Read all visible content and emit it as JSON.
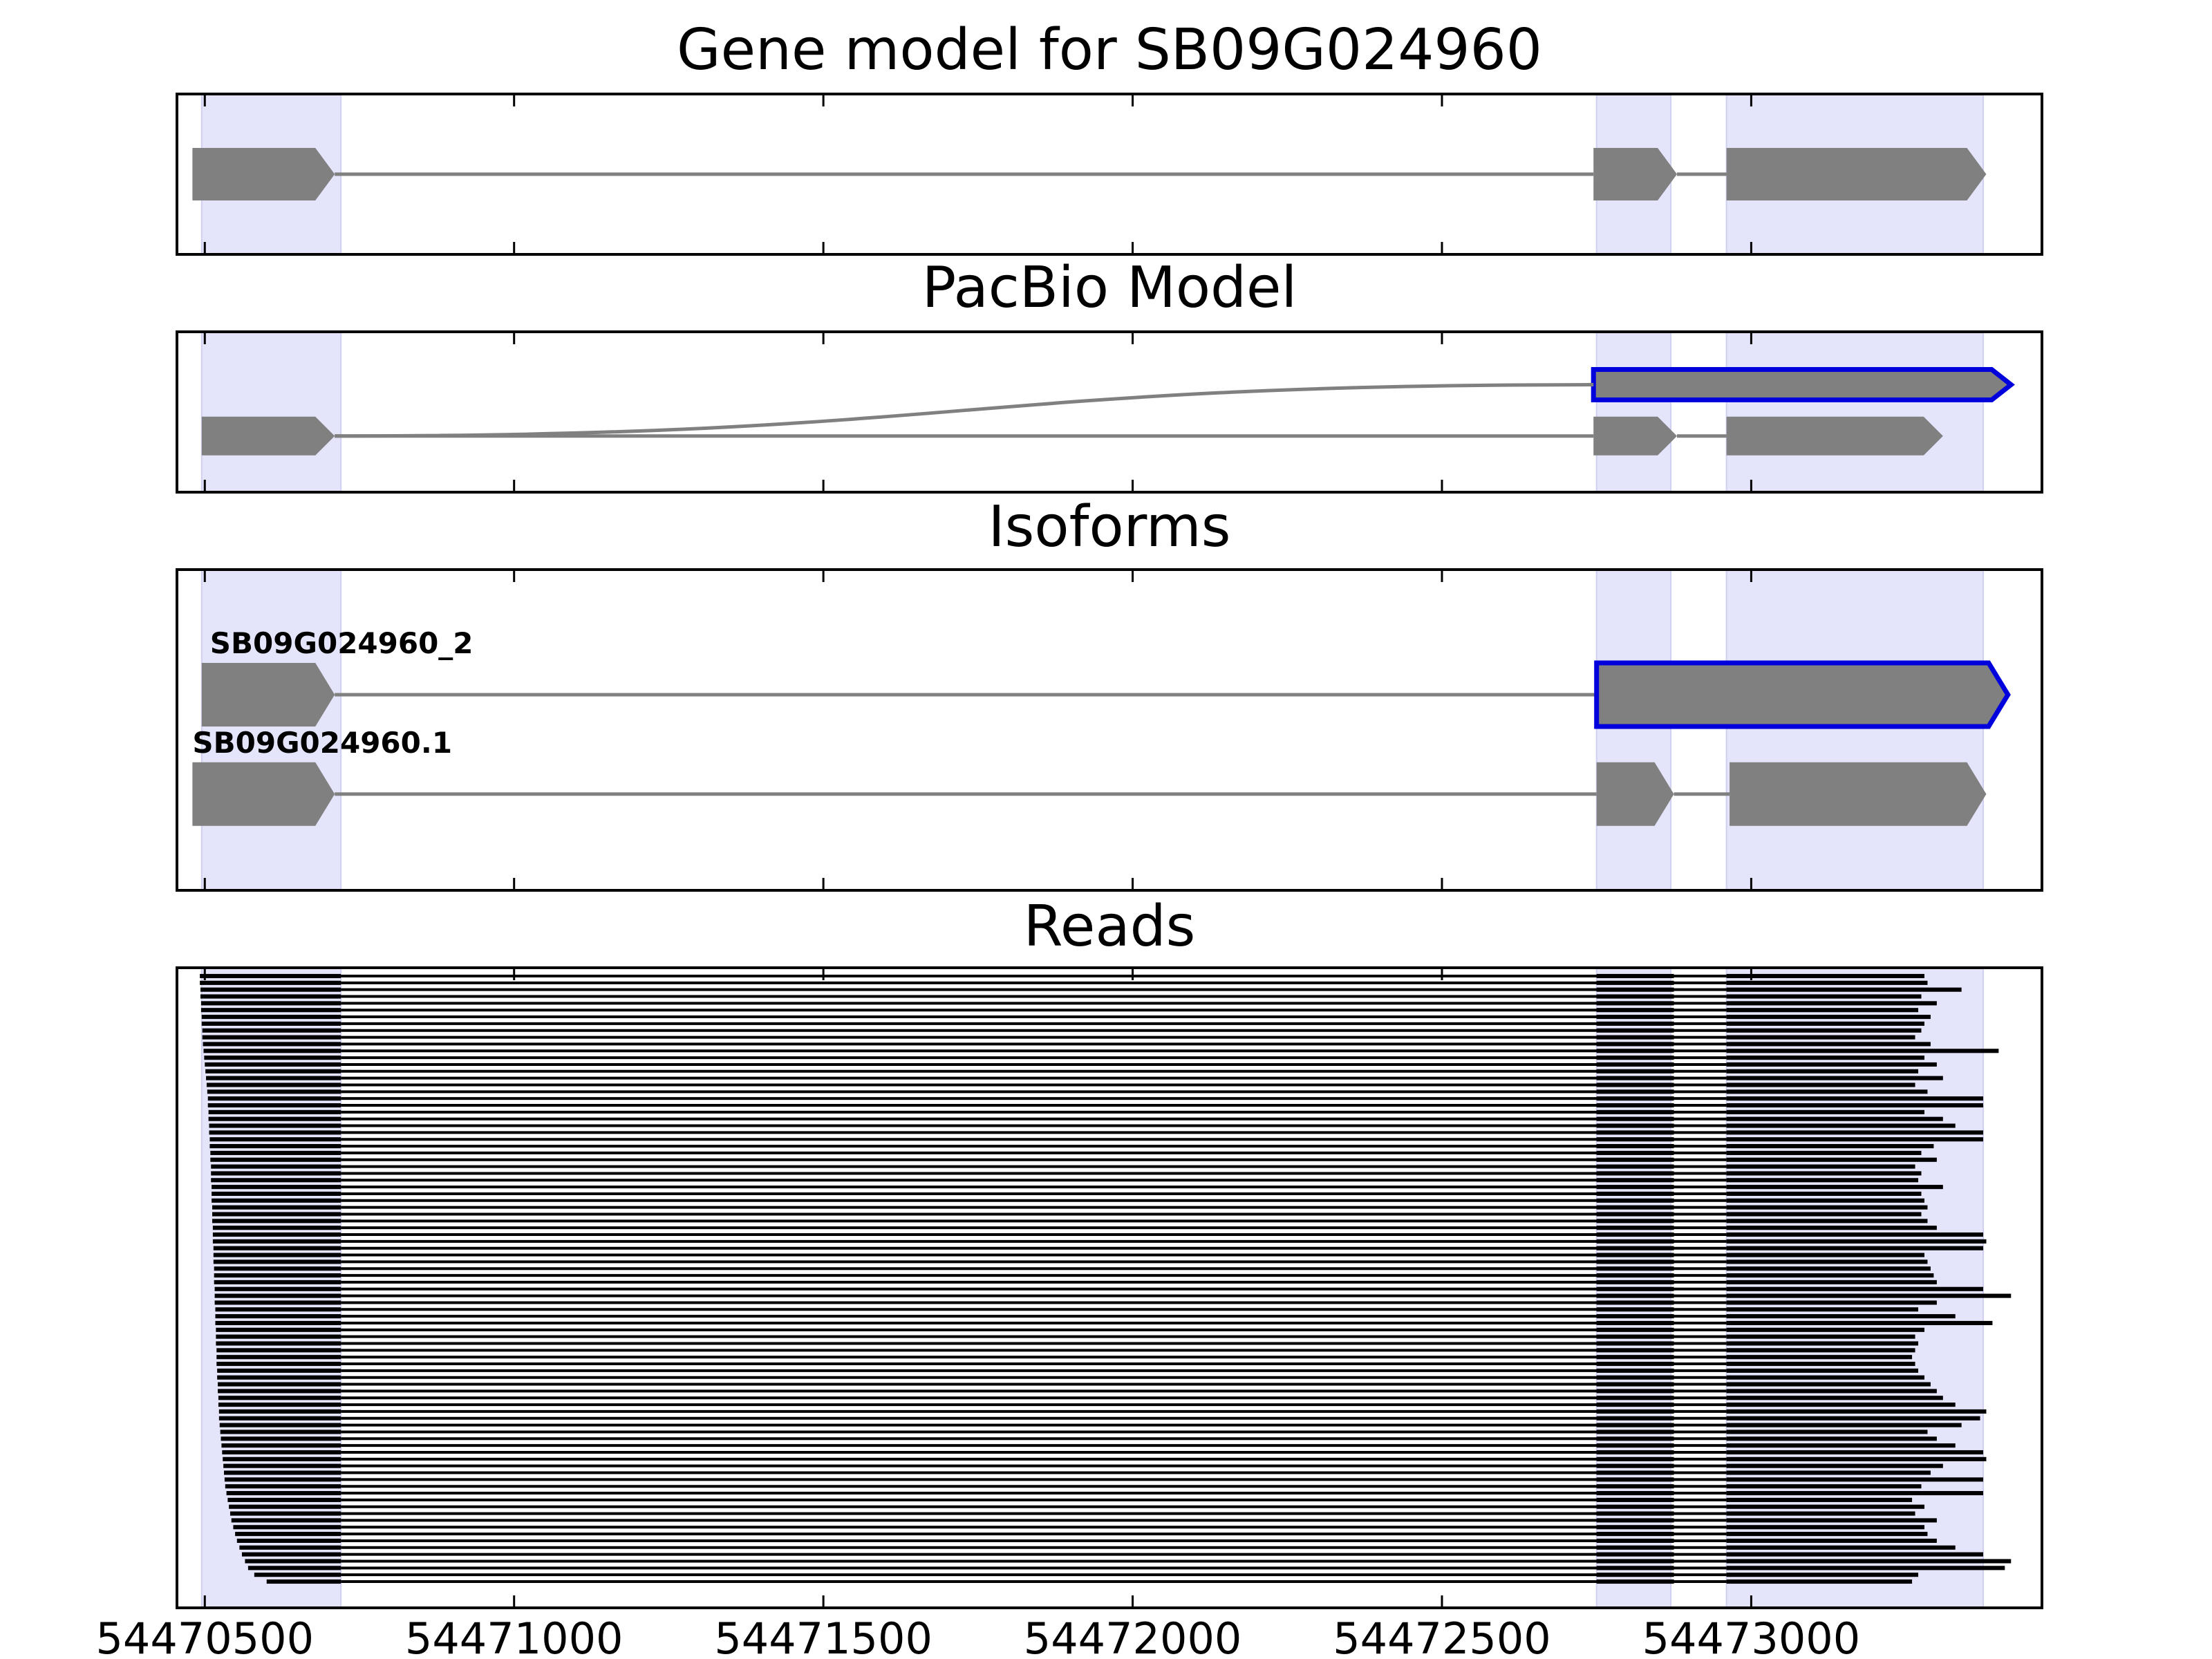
{
  "chart_data": {
    "type": "gene_structure_tracks",
    "x_range": [
      54470455,
      54473470
    ],
    "x_ticks": [
      54470500,
      54471000,
      54471500,
      54472000,
      54472500,
      54473000
    ],
    "colors": {
      "highlight": "#e4e4fb",
      "feature": "#808080",
      "selected_outline": "#0000dd",
      "read": "#000000"
    },
    "exon_regions": [
      [
        54470495,
        54470720
      ],
      [
        54472750,
        54472870
      ],
      [
        54472960,
        54473375
      ]
    ],
    "panels": [
      {
        "id": "gene-model",
        "title": "Gene model for SB09G024960",
        "tracks": [
          {
            "label": "",
            "row": 0.5,
            "highlight": false,
            "exons": [
              [
                54470480,
                54470710
              ],
              [
                54472745,
                54472880
              ],
              [
                54472960,
                54473380
              ]
            ]
          }
        ]
      },
      {
        "id": "pacbio-model",
        "title": "PacBio Model",
        "tracks": [
          {
            "label": "",
            "row": 0.33,
            "highlight": true,
            "exons": [
              [
                54472745,
                54473420
              ]
            ],
            "curved_intron": true
          },
          {
            "label": "",
            "row": 0.65,
            "highlight": false,
            "exons": [
              [
                54470495,
                54470710
              ],
              [
                54472745,
                54472880
              ],
              [
                54472960,
                54473310
              ]
            ]
          }
        ]
      },
      {
        "id": "isoforms",
        "title": "Isoforms",
        "tracks": [
          {
            "label": "SB09G024960_2",
            "row": 0.39,
            "highlight": true,
            "exons": [
              [
                54470495,
                54470710
              ],
              [
                54472750,
                54473415
              ]
            ]
          },
          {
            "label": "SB09G024960.1",
            "row": 0.7,
            "highlight": false,
            "exons": [
              [
                54470480,
                54470710
              ],
              [
                54472750,
                54472875
              ],
              [
                54472965,
                54473380
              ]
            ]
          }
        ]
      }
    ],
    "reads_panel": {
      "id": "reads",
      "title": "Reads",
      "exon1_end": 54470720,
      "exon2": [
        54472750,
        54472875
      ],
      "exon3_start": 54472960,
      "read_count": 90,
      "read_starts": [
        54470492,
        54470492,
        54470493,
        54470493,
        54470494,
        54470494,
        54470495,
        54470495,
        54470496,
        54470496,
        54470497,
        54470498,
        54470499,
        54470500,
        54470501,
        54470502,
        54470503,
        54470504,
        54470505,
        54470505,
        54470506,
        54470506,
        54470507,
        54470507,
        54470508,
        54470508,
        54470509,
        54470509,
        54470510,
        54470510,
        54470510,
        54470511,
        54470511,
        54470511,
        54470512,
        54470512,
        54470512,
        54470513,
        54470513,
        54470513,
        54470514,
        54470514,
        54470514,
        54470515,
        54470515,
        54470515,
        54470516,
        54470516,
        54470516,
        54470517,
        54470517,
        54470517,
        54470518,
        54470518,
        54470518,
        54470519,
        54470519,
        54470519,
        54470520,
        54470520,
        54470521,
        54470521,
        54470522,
        54470522,
        54470523,
        54470523,
        54470524,
        54470525,
        54470526,
        54470527,
        54470528,
        54470529,
        54470530,
        54470531,
        54470532,
        54470533,
        54470535,
        54470537,
        54470539,
        54470541,
        54470543,
        54470546,
        54470549,
        54470552,
        54470556,
        54470560,
        54470565,
        54470570,
        54470580,
        54470600
      ],
      "read_ends": [
        54473280,
        54473285,
        54473340,
        54473275,
        54473300,
        54473270,
        54473290,
        54473280,
        54473275,
        54473265,
        54473290,
        54473400,
        54473280,
        54473300,
        54473270,
        54473310,
        54473265,
        54473285,
        54473375,
        54473375,
        54473280,
        54473310,
        54473330,
        54473375,
        54473375,
        54473295,
        54473275,
        54473300,
        54473265,
        54473275,
        54473270,
        54473310,
        54473275,
        54473280,
        54473285,
        54473275,
        54473285,
        54473300,
        54473375,
        54473380,
        54473375,
        54473280,
        54473285,
        54473290,
        54473295,
        54473300,
        54473375,
        54473420,
        54473300,
        54473270,
        54473330,
        54473390,
        54473280,
        54473265,
        54473270,
        54473265,
        54473260,
        54473265,
        54473270,
        54473280,
        54473290,
        54473300,
        54473310,
        54473330,
        54473380,
        54473370,
        54473340,
        54473285,
        54473300,
        54473330,
        54473375,
        54473380,
        54473310,
        54473290,
        54473375,
        54473275,
        54473375,
        54473260,
        54473280,
        54473265,
        54473300,
        54473280,
        54473285,
        54473300,
        54473330,
        54473375,
        54473420,
        54473410,
        54473270,
        54473260
      ]
    }
  }
}
